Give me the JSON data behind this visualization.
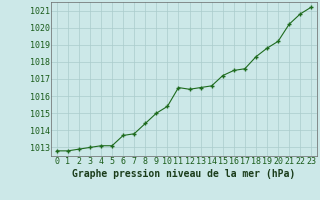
{
  "x": [
    0,
    1,
    2,
    3,
    4,
    5,
    6,
    7,
    8,
    9,
    10,
    11,
    12,
    13,
    14,
    15,
    16,
    17,
    18,
    19,
    20,
    21,
    22,
    23
  ],
  "y": [
    1012.8,
    1012.8,
    1012.9,
    1013.0,
    1013.1,
    1013.1,
    1013.7,
    1013.8,
    1014.4,
    1015.0,
    1015.4,
    1016.5,
    1016.4,
    1016.5,
    1016.6,
    1017.2,
    1017.5,
    1017.6,
    1018.3,
    1018.8,
    1019.2,
    1020.2,
    1020.8,
    1021.2
  ],
  "line_color": "#1e6b1e",
  "marker_color": "#1e6b1e",
  "bg_color": "#cce8e8",
  "grid_color": "#aacccc",
  "xlabel": "Graphe pression niveau de la mer (hPa)",
  "xlabel_fontsize": 7,
  "tick_fontsize": 6,
  "ylabel_ticks": [
    1013,
    1014,
    1015,
    1016,
    1017,
    1018,
    1019,
    1020,
    1021
  ],
  "ylim": [
    1012.5,
    1021.5
  ],
  "xlim": [
    -0.5,
    23.5
  ]
}
